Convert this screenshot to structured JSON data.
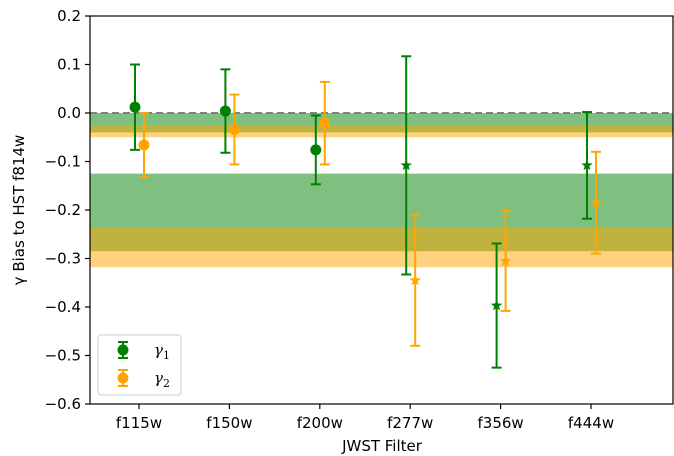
{
  "chart_data": {
    "type": "scatter",
    "title": "",
    "xlabel": "JWST Filter",
    "ylabel": "γ Bias to HST f814w",
    "categories": [
      "f115w",
      "f150w",
      "f200w",
      "f277w",
      "f356w",
      "f444w"
    ],
    "ylim": [
      -0.6,
      0.2
    ],
    "yticks": [
      "0.2",
      "0.1",
      "0.0",
      "−0.1",
      "−0.2",
      "−0.3",
      "−0.4",
      "−0.5",
      "−0.6"
    ],
    "reference_line": 0.0,
    "bands": [
      {
        "series": "γ1",
        "color": "#008000",
        "opacity": 0.5,
        "low": -0.04,
        "high": 0.0
      },
      {
        "series": "γ2",
        "color": "#FFA500",
        "opacity": 0.5,
        "low": -0.05,
        "high": -0.025
      },
      {
        "series": "γ1",
        "color": "#008000",
        "opacity": 0.5,
        "low": -0.285,
        "high": -0.125
      },
      {
        "series": "γ2",
        "color": "#FFA500",
        "opacity": 0.5,
        "low": -0.318,
        "high": -0.235
      }
    ],
    "series": [
      {
        "name": "γ1",
        "legend_main": "γ",
        "legend_sub": "1",
        "color": "#008000",
        "points": [
          {
            "x": "f115w",
            "y": 0.012,
            "err": 0.088,
            "marker": "circle"
          },
          {
            "x": "f150w",
            "y": 0.004,
            "err": 0.086,
            "marker": "circle"
          },
          {
            "x": "f200w",
            "y": -0.076,
            "err": 0.071,
            "marker": "circle"
          },
          {
            "x": "f277w",
            "y": -0.108,
            "err": 0.225,
            "marker": "star"
          },
          {
            "x": "f356w",
            "y": -0.397,
            "err": 0.128,
            "marker": "star"
          },
          {
            "x": "f444w",
            "y": -0.108,
            "err": 0.11,
            "marker": "star"
          }
        ]
      },
      {
        "name": "γ2",
        "legend_main": "γ",
        "legend_sub": "2",
        "color": "#FFA500",
        "points": [
          {
            "x": "f115w",
            "y": -0.066,
            "err": 0.066,
            "marker": "circle"
          },
          {
            "x": "f150w",
            "y": -0.034,
            "err": 0.072,
            "marker": "circle"
          },
          {
            "x": "f200w",
            "y": -0.021,
            "err": 0.085,
            "marker": "circle"
          },
          {
            "x": "f277w",
            "y": -0.345,
            "err": 0.135,
            "marker": "star"
          },
          {
            "x": "f356w",
            "y": -0.305,
            "err": 0.103,
            "marker": "star"
          },
          {
            "x": "f444w",
            "y": -0.185,
            "err": 0.105,
            "marker": "star"
          }
        ]
      }
    ],
    "legend_position": "lower-left"
  }
}
